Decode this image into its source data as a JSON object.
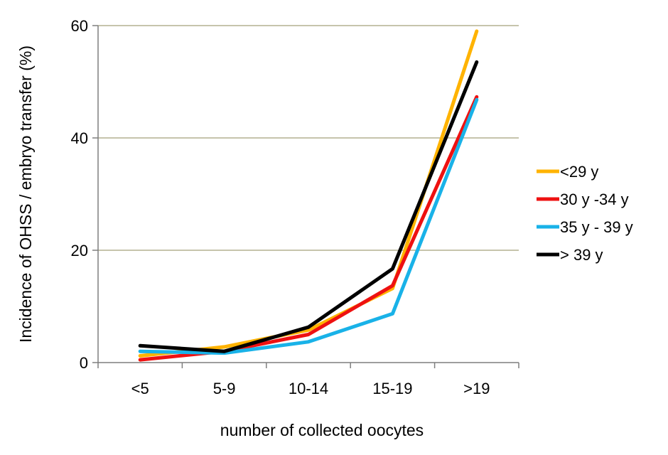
{
  "chart_data": {
    "type": "line",
    "categories": [
      "<5",
      "5-9",
      "10-14",
      "15-19",
      ">19"
    ],
    "xlabel": "number of collected oocytes",
    "ylabel": "Incidence of OHSS / embryo transfer  (%)",
    "ylim": [
      0,
      60
    ],
    "yticks": [
      0,
      20,
      40,
      60
    ],
    "grid": "horizontal",
    "legend_position": "right",
    "series": [
      {
        "name": "<29 y",
        "color": "#FFB300",
        "values": [
          1.2,
          2.8,
          5.8,
          13.2,
          59
        ]
      },
      {
        "name": "30 y -34 y",
        "color": "#EE1111",
        "values": [
          0.5,
          2.0,
          5.0,
          13.7,
          47.3
        ]
      },
      {
        "name": "35 y - 39 y",
        "color": "#19B2E8",
        "values": [
          2.0,
          1.7,
          3.7,
          8.7,
          46.8
        ]
      },
      {
        "name": "> 39 y",
        "color": "#000000",
        "values": [
          3.0,
          2.0,
          6.3,
          16.7,
          53.5
        ]
      }
    ]
  }
}
